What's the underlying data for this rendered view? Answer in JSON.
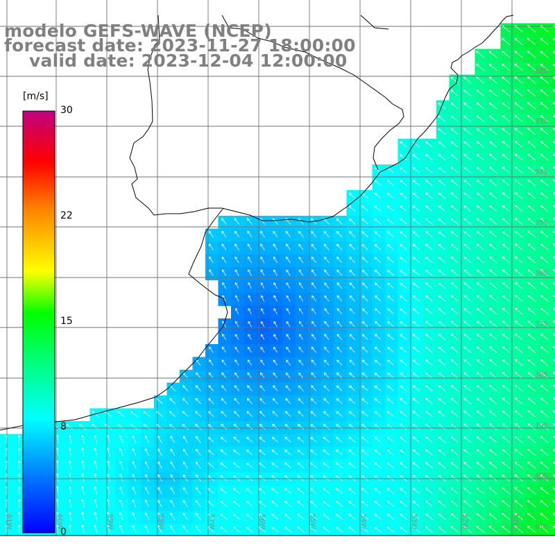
{
  "title": {
    "model": "modelo GEFS-WAVE (NCEP)",
    "forecast": "forecast date: 2023-11-27 18:00:00",
    "valid": "valid date: 2023-12-04 12:00:00"
  },
  "colorbar": {
    "unit": "[m/s]",
    "min": 0,
    "max": 30,
    "tick_labels": [
      "30",
      "22",
      "15",
      "8",
      "0"
    ],
    "tick_values": [
      30,
      22,
      15,
      8,
      0
    ],
    "colors": [
      "#0000ff",
      "#0090ff",
      "#00ffff",
      "#00ff40",
      "#00ff00",
      "#ffff00",
      "#ff8000",
      "#ff0000",
      "#c00080"
    ]
  },
  "grid": {
    "lat_labels": [
      "32S",
      "33S",
      "34S",
      "35S",
      "36S",
      "37S",
      "38S",
      "39S",
      "40S",
      "41S"
    ],
    "lon_labels": [
      "61W",
      "60W",
      "59W",
      "58W",
      "57W",
      "56W",
      "55W",
      "54W",
      "53W",
      "52W",
      "51W"
    ]
  },
  "field": {
    "variable": "wind speed and direction",
    "general_direction": "from southeast"
  }
}
